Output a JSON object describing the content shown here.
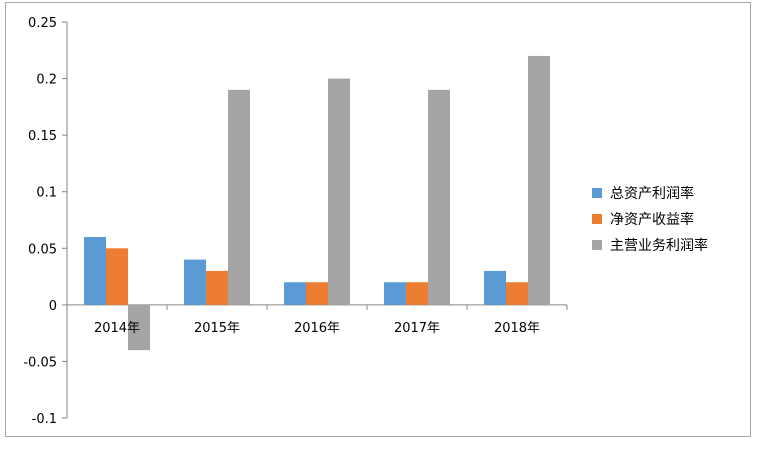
{
  "chart_data": {
    "type": "bar",
    "categories": [
      "2014年",
      "2015年",
      "2016年",
      "2017年",
      "2018年"
    ],
    "series": [
      {
        "name": "总资产利润率",
        "color": "#5b9bd5",
        "values": [
          0.06,
          0.04,
          0.02,
          0.02,
          0.03
        ]
      },
      {
        "name": "净资产收益率",
        "color": "#ed7d31",
        "values": [
          0.05,
          0.03,
          0.02,
          0.02,
          0.02
        ]
      },
      {
        "name": "主营业务利润率",
        "color": "#a5a5a5",
        "values": [
          -0.04,
          0.19,
          0.2,
          0.19,
          0.22
        ]
      }
    ],
    "ylim": [
      -0.1,
      0.25
    ],
    "yticks": [
      "0.25",
      "0.2",
      "0.15",
      "0.1",
      "0.05",
      "0",
      "-0.05",
      "-0.1"
    ],
    "ytick_values": [
      0.25,
      0.2,
      0.15,
      0.1,
      0.05,
      0,
      -0.05,
      -0.1
    ],
    "grid": false,
    "legend_position": "right",
    "title": "",
    "xlabel": "",
    "ylabel": ""
  }
}
